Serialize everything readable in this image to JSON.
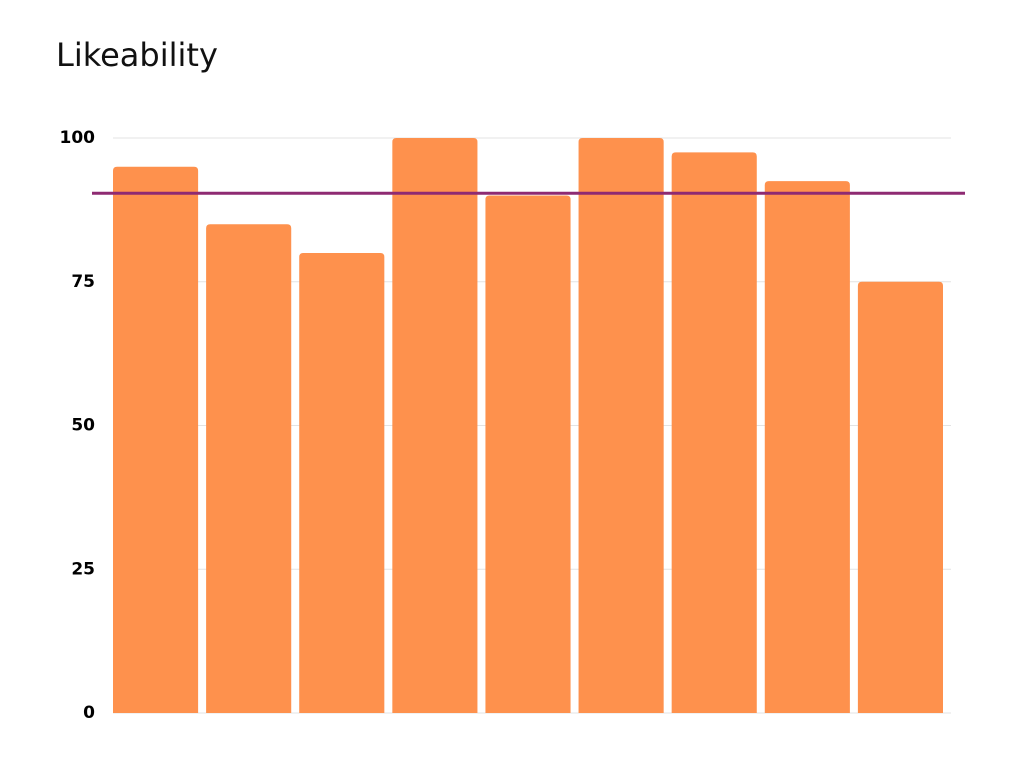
{
  "chart_data": {
    "type": "bar",
    "title": "Likeability",
    "categories": [
      null,
      null,
      null,
      null,
      null,
      null,
      null,
      null,
      null
    ],
    "values": [
      95,
      85,
      80,
      100,
      90,
      100,
      97.5,
      92.5,
      75
    ],
    "color": "#fe914d",
    "ylim": [
      0,
      100
    ],
    "yticks": [
      0,
      25,
      50,
      75,
      100
    ],
    "grid": true,
    "reference_line": {
      "value": 90.4,
      "color": "#8e2a72"
    }
  }
}
